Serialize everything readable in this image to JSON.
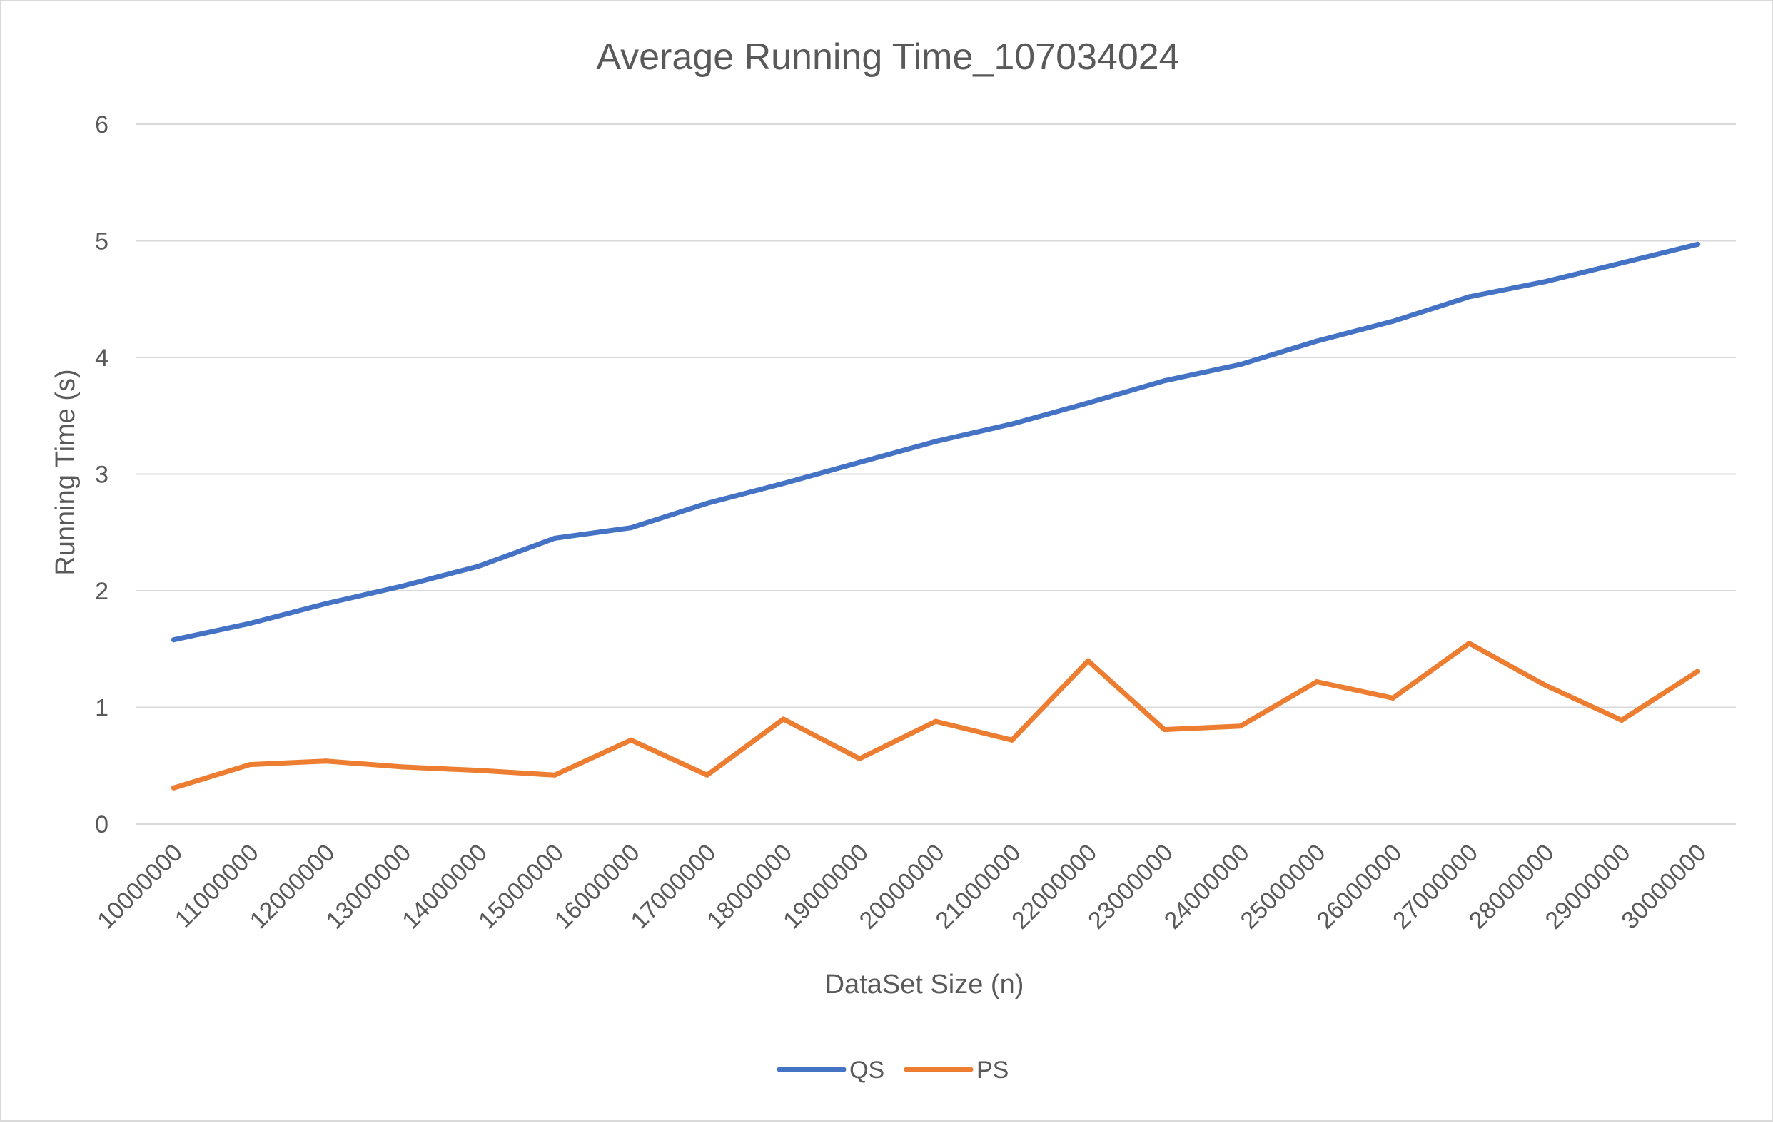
{
  "chart_data": {
    "type": "line",
    "title": "Average Running Time_107034024",
    "xlabel": "DataSet Size (n)",
    "ylabel": "Running Time (s)",
    "ylim": [
      0,
      6
    ],
    "yticks": [
      0,
      1,
      2,
      3,
      4,
      5,
      6
    ],
    "grid": true,
    "legend_position": "bottom",
    "categories": [
      "10000000",
      "11000000",
      "12000000",
      "13000000",
      "14000000",
      "15000000",
      "16000000",
      "17000000",
      "18000000",
      "19000000",
      "20000000",
      "21000000",
      "22000000",
      "23000000",
      "24000000",
      "25000000",
      "26000000",
      "27000000",
      "28000000",
      "29000000",
      "30000000"
    ],
    "series": [
      {
        "name": "QS",
        "color": "#4472c4",
        "values": [
          1.58,
          1.72,
          1.89,
          2.04,
          2.21,
          2.45,
          2.54,
          2.75,
          2.92,
          3.1,
          3.28,
          3.43,
          3.61,
          3.8,
          3.94,
          4.14,
          4.31,
          4.52,
          4.65,
          4.81,
          4.97
        ]
      },
      {
        "name": "PS",
        "color": "#ed7d31",
        "values": [
          0.31,
          0.51,
          0.54,
          0.49,
          0.46,
          0.42,
          0.72,
          0.42,
          0.9,
          0.56,
          0.88,
          0.72,
          1.4,
          0.81,
          0.84,
          1.22,
          1.08,
          1.55,
          1.19,
          0.89,
          1.31
        ]
      }
    ]
  }
}
